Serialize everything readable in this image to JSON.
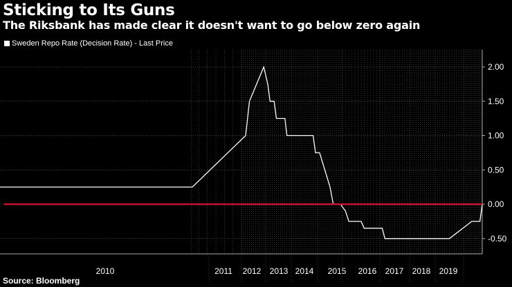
{
  "header": {
    "title": "Sticking to Its Guns",
    "subtitle": "The Riksbank has made clear it doesn't want to go below zero again"
  },
  "footer": {
    "source": "Source: Bloomberg"
  },
  "colors": {
    "background": "#000000",
    "series": "#ffffff",
    "zero_line": "#c8102e",
    "grid": "#888888"
  },
  "chart_data": {
    "type": "line",
    "title": "Sticking to Its Guns",
    "subtitle": "The Riksbank has made clear it doesn't want to go below zero again",
    "legend": "top-left",
    "grid": true,
    "ylim": [
      -0.6,
      2.3
    ],
    "xlim": [
      2010.5,
      2019.9
    ],
    "y_ticks": [
      2.0,
      1.5,
      1.0,
      0.5,
      0.0,
      -0.5
    ],
    "y_tick_labels": [
      "2.00",
      "1.50",
      "1.00",
      "0.50",
      "0.00",
      "-0.50"
    ],
    "x_tick_labels": [
      "2010",
      "2011",
      "2012",
      "2013",
      "2014",
      "2015",
      "2016",
      "2017",
      "2018",
      "2019"
    ],
    "series": [
      {
        "name": "Sweden Repo Rate (Decision Rate) - Last Price",
        "x": [
          2006.0,
          2010.52,
          2011.17,
          2011.25,
          2011.33,
          2011.92,
          2012.08,
          2012.17,
          2012.33,
          2012.42,
          2012.75,
          2012.83,
          2013.25,
          2013.42,
          2013.83,
          2013.92,
          2014.08,
          2014.5,
          2014.63,
          2014.92,
          2015.08,
          2015.17,
          2015.5,
          2015.58,
          2016.08,
          2016.17,
          2018.42,
          2018.5,
          2019.42,
          2019.5,
          2019.83,
          2019.95
        ],
        "y": [
          0.25,
          0.25,
          1.0,
          1.25,
          1.5,
          2.0,
          1.75,
          1.5,
          1.5,
          1.25,
          1.25,
          1.0,
          1.0,
          1.0,
          1.0,
          0.75,
          0.75,
          0.25,
          0.0,
          0.0,
          -0.1,
          -0.25,
          -0.25,
          -0.35,
          -0.35,
          -0.5,
          -0.5,
          -0.5,
          -0.25,
          -0.25,
          -0.25,
          0.0
        ]
      }
    ],
    "reference_lines": [
      {
        "y": 0.0
      }
    ]
  }
}
